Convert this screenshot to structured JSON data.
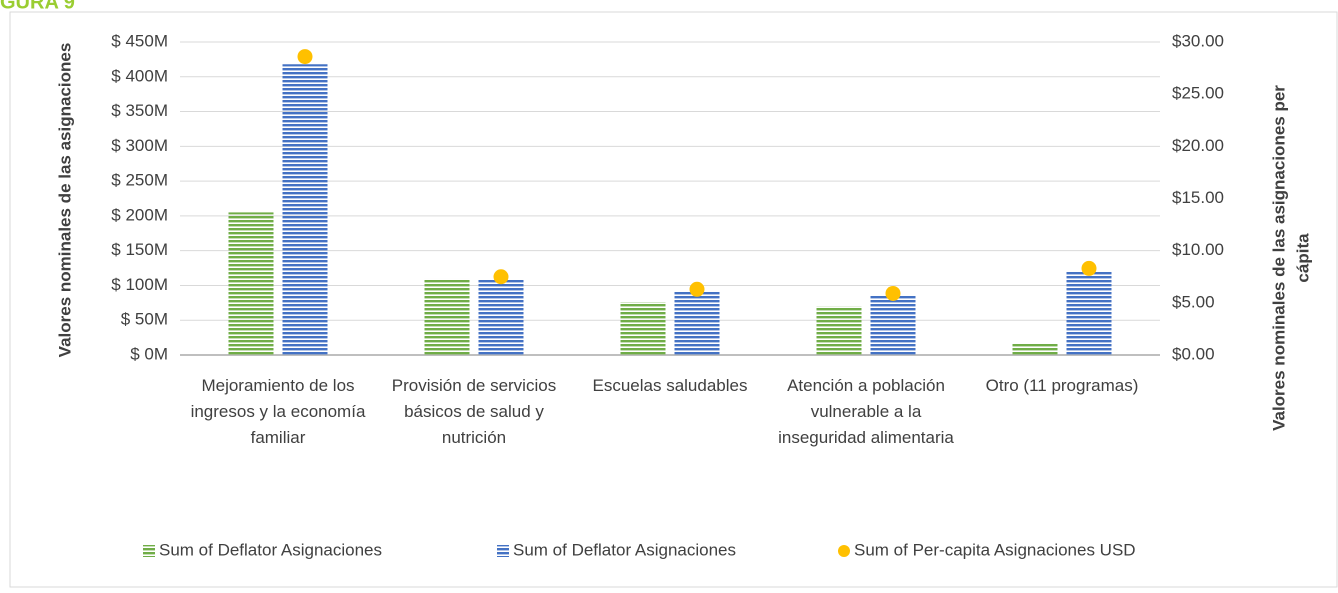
{
  "heading": "GURA 9",
  "chart_data": {
    "type": "bar",
    "ylabel": "Valores nominales de las asignaciones",
    "y2label": [
      "Valores  nominales de las asignaciones per",
      "cápita"
    ],
    "categories": [
      "Mejoramiento de los ingresos y la economía familiar",
      "Provisión de servicios básicos de salud y nutrición",
      "Escuelas saludables",
      "Atención a población vulnerable a la inseguridad alimentaria",
      "Otro (11 programas)"
    ],
    "series": [
      {
        "name": "Sum of Deflator Asignaciones",
        "color": "#70ad47",
        "values": [
          205,
          110,
          76,
          70,
          16
        ]
      },
      {
        "name": "Sum of Deflator Asignaciones",
        "color": "#4472c4",
        "values": [
          418,
          108,
          91,
          85,
          121
        ]
      },
      {
        "name": "Sum of Per-capita Asignaciones USD",
        "color": "#ffc000",
        "type": "scatter",
        "axis": "y2",
        "values": [
          28.6,
          7.5,
          6.3,
          5.9,
          8.3
        ]
      }
    ],
    "ylim": [
      0,
      450
    ],
    "yticks": [
      {
        "value": 0,
        "label": "$ 0M"
      },
      {
        "value": 50,
        "label": "$ 50M"
      },
      {
        "value": 100,
        "label": "$ 100M"
      },
      {
        "value": 150,
        "label": "$ 150M"
      },
      {
        "value": 200,
        "label": "$ 200M"
      },
      {
        "value": 250,
        "label": "$ 250M"
      },
      {
        "value": 300,
        "label": "$ 300M"
      },
      {
        "value": 350,
        "label": "$ 350M"
      },
      {
        "value": 400,
        "label": "$ 400M"
      },
      {
        "value": 450,
        "label": "$ 450M"
      }
    ],
    "y2lim": [
      0,
      30
    ],
    "y2ticks": [
      {
        "value": 0,
        "label": "$0.00"
      },
      {
        "value": 5,
        "label": "$5.00"
      },
      {
        "value": 10,
        "label": "$10.00"
      },
      {
        "value": 15,
        "label": "$15.00"
      },
      {
        "value": 20,
        "label": "$20.00"
      },
      {
        "value": 25,
        "label": "$25.00"
      },
      {
        "value": 30,
        "label": "$30.00"
      }
    ],
    "grid": true,
    "legend": "bottom"
  }
}
